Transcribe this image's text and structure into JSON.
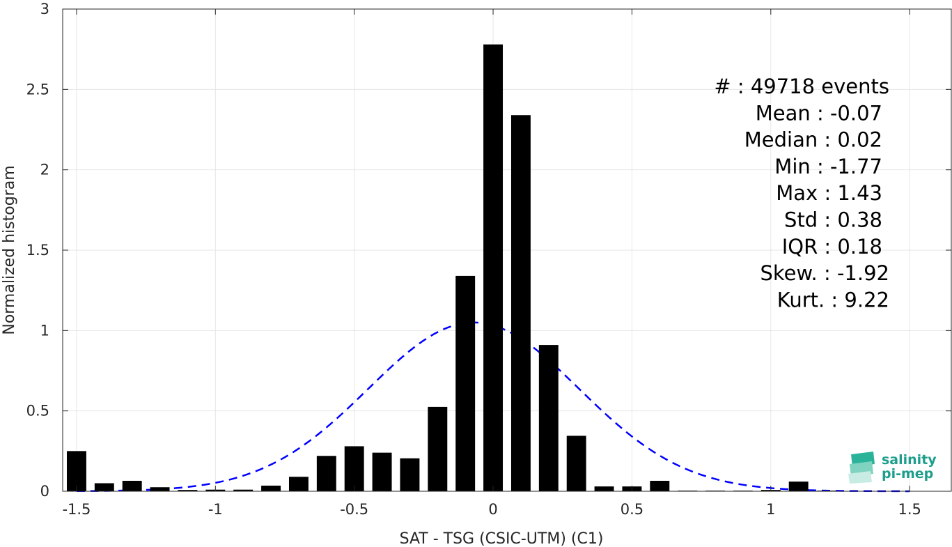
{
  "chart_data": {
    "type": "bar",
    "xlabel": "SAT - TSG (CSIC-UTM) (C1)",
    "ylabel": "Normalized histogram",
    "xlim": [
      -1.55,
      1.65
    ],
    "ylim": [
      0,
      3
    ],
    "grid": true,
    "x_ticks": [
      "-1.5",
      "-1",
      "-0.5",
      "0",
      "0.5",
      "1",
      "1.5"
    ],
    "y_ticks": [
      "0",
      "0.5",
      "1",
      "1.5",
      "2",
      "2.5",
      "3"
    ],
    "bin_centers": [
      -1.5,
      -1.4,
      -1.3,
      -1.2,
      -1.1,
      -1.0,
      -0.9,
      -0.8,
      -0.7,
      -0.6,
      -0.5,
      -0.4,
      -0.3,
      -0.2,
      -0.1,
      0.0,
      0.1,
      0.2,
      0.3,
      0.4,
      0.5,
      0.6,
      0.7,
      0.8,
      0.9,
      1.0,
      1.1,
      1.2,
      1.3,
      1.4,
      1.5
    ],
    "bar_width": 0.07,
    "values": [
      0.25,
      0.05,
      0.065,
      0.025,
      0.008,
      0.01,
      0.01,
      0.035,
      0.09,
      0.22,
      0.28,
      0.24,
      0.205,
      0.525,
      1.34,
      2.78,
      2.34,
      0.91,
      0.345,
      0.03,
      0.03,
      0.065,
      0.004,
      0.004,
      0.004,
      0.008,
      0.06,
      0.004,
      0.002,
      0.002,
      0.002
    ],
    "fit_curve": {
      "type": "normal",
      "mean": -0.07,
      "std": 0.38,
      "x_range": [
        -1.5,
        1.5
      ],
      "color": "#0000ff",
      "style": "dashed"
    },
    "bar_color": "#000000",
    "stats": [
      {
        "label": "#  : 49718 events"
      },
      {
        "label": "Mean : -0.07"
      },
      {
        "label": "Median : 0.02"
      },
      {
        "label": "Min : -1.77"
      },
      {
        "label": "Max : 1.43"
      },
      {
        "label": "Std : 0.38"
      },
      {
        "label": "IQR : 0.18"
      },
      {
        "label": "Skew. : -1.92"
      },
      {
        "label": "Kurt. : 9.22"
      }
    ]
  },
  "logo": {
    "line1": "salinity",
    "line2": "pi-mep",
    "color": "#1d9e8c"
  }
}
